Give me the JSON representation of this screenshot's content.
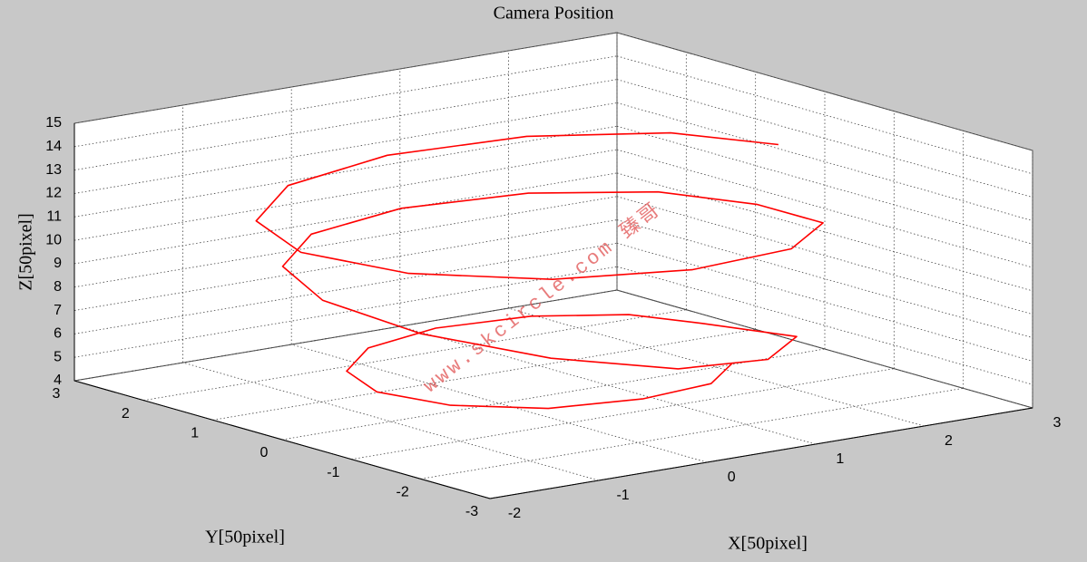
{
  "chart_data": {
    "type": "line3d",
    "title": "Camera Position",
    "xlabel": "X[50pixel]",
    "ylabel": "Y[50pixel]",
    "zlabel": "Z[50pixel]",
    "xlim": [
      -2,
      3
    ],
    "ylim": [
      -3,
      3
    ],
    "zlim": [
      4,
      15
    ],
    "xticks": [
      -2,
      -1,
      0,
      1,
      2,
      3
    ],
    "yticks": [
      -3,
      -2,
      -1,
      0,
      1,
      2,
      3
    ],
    "zticks": [
      4,
      5,
      6,
      7,
      8,
      9,
      10,
      11,
      12,
      13,
      14,
      15
    ],
    "grid": true,
    "watermark": "www.skcircle.com 臻哥",
    "series": [
      {
        "color": "#ff0000",
        "x": [
          2.7,
          2.41,
          1.6,
          0.5,
          -0.6,
          -1.41,
          -1.7,
          -1.41,
          -0.6,
          0.5,
          1.6,
          2.41,
          2.5,
          2.23,
          1.5,
          0.5,
          -0.5,
          -1.23,
          -1.5,
          -1.23,
          -0.5,
          0.5,
          1.5,
          2.23,
          2.0,
          1.8,
          1.25,
          0.5,
          -0.25,
          -0.8,
          -1.0,
          -0.8,
          -0.25,
          0.5,
          1.25,
          1.8
        ],
        "y": [
          0.2,
          1.3,
          2.11,
          2.4,
          2.11,
          1.3,
          0.2,
          -0.9,
          -1.71,
          -2.0,
          -1.71,
          -0.9,
          0.2,
          1.2,
          1.93,
          2.2,
          1.93,
          1.2,
          0.2,
          -0.8,
          -1.53,
          -1.8,
          -1.53,
          -0.8,
          0.2,
          0.95,
          1.5,
          1.7,
          1.5,
          0.95,
          0.2,
          -0.55,
          -1.1,
          -1.3,
          -1.1,
          -0.55
        ],
        "z": [
          12.8,
          12.6,
          12.4,
          12.2,
          12.0,
          11.8,
          11.6,
          11.4,
          11.2,
          11.0,
          10.8,
          10.6,
          10.4,
          10.3,
          10.2,
          10.1,
          10.0,
          9.8,
          9.4,
          8.6,
          7.6,
          6.6,
          6.0,
          5.8,
          5.7,
          5.6,
          5.5,
          5.4,
          5.3,
          5.2,
          5.1,
          5.0,
          4.9,
          4.9,
          4.8,
          4.8
        ]
      }
    ]
  }
}
